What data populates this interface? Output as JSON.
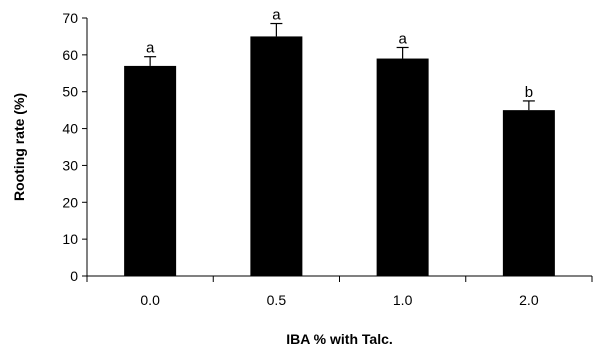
{
  "chart_data": {
    "type": "bar",
    "categories": [
      "0.0",
      "0.5",
      "1.0",
      "2.0"
    ],
    "values": [
      57,
      65,
      59,
      45
    ],
    "errors": [
      2.5,
      3.5,
      3,
      2.5
    ],
    "significance": [
      "a",
      "a",
      "a",
      "b"
    ],
    "title": "",
    "xlabel": "IBA % with Talc.",
    "ylabel": "Rooting rate  (%)",
    "ylim": [
      0,
      70
    ],
    "yticks": [
      0,
      10,
      20,
      30,
      40,
      50,
      60,
      70
    ],
    "grid": false,
    "bar_color": "#000000"
  }
}
